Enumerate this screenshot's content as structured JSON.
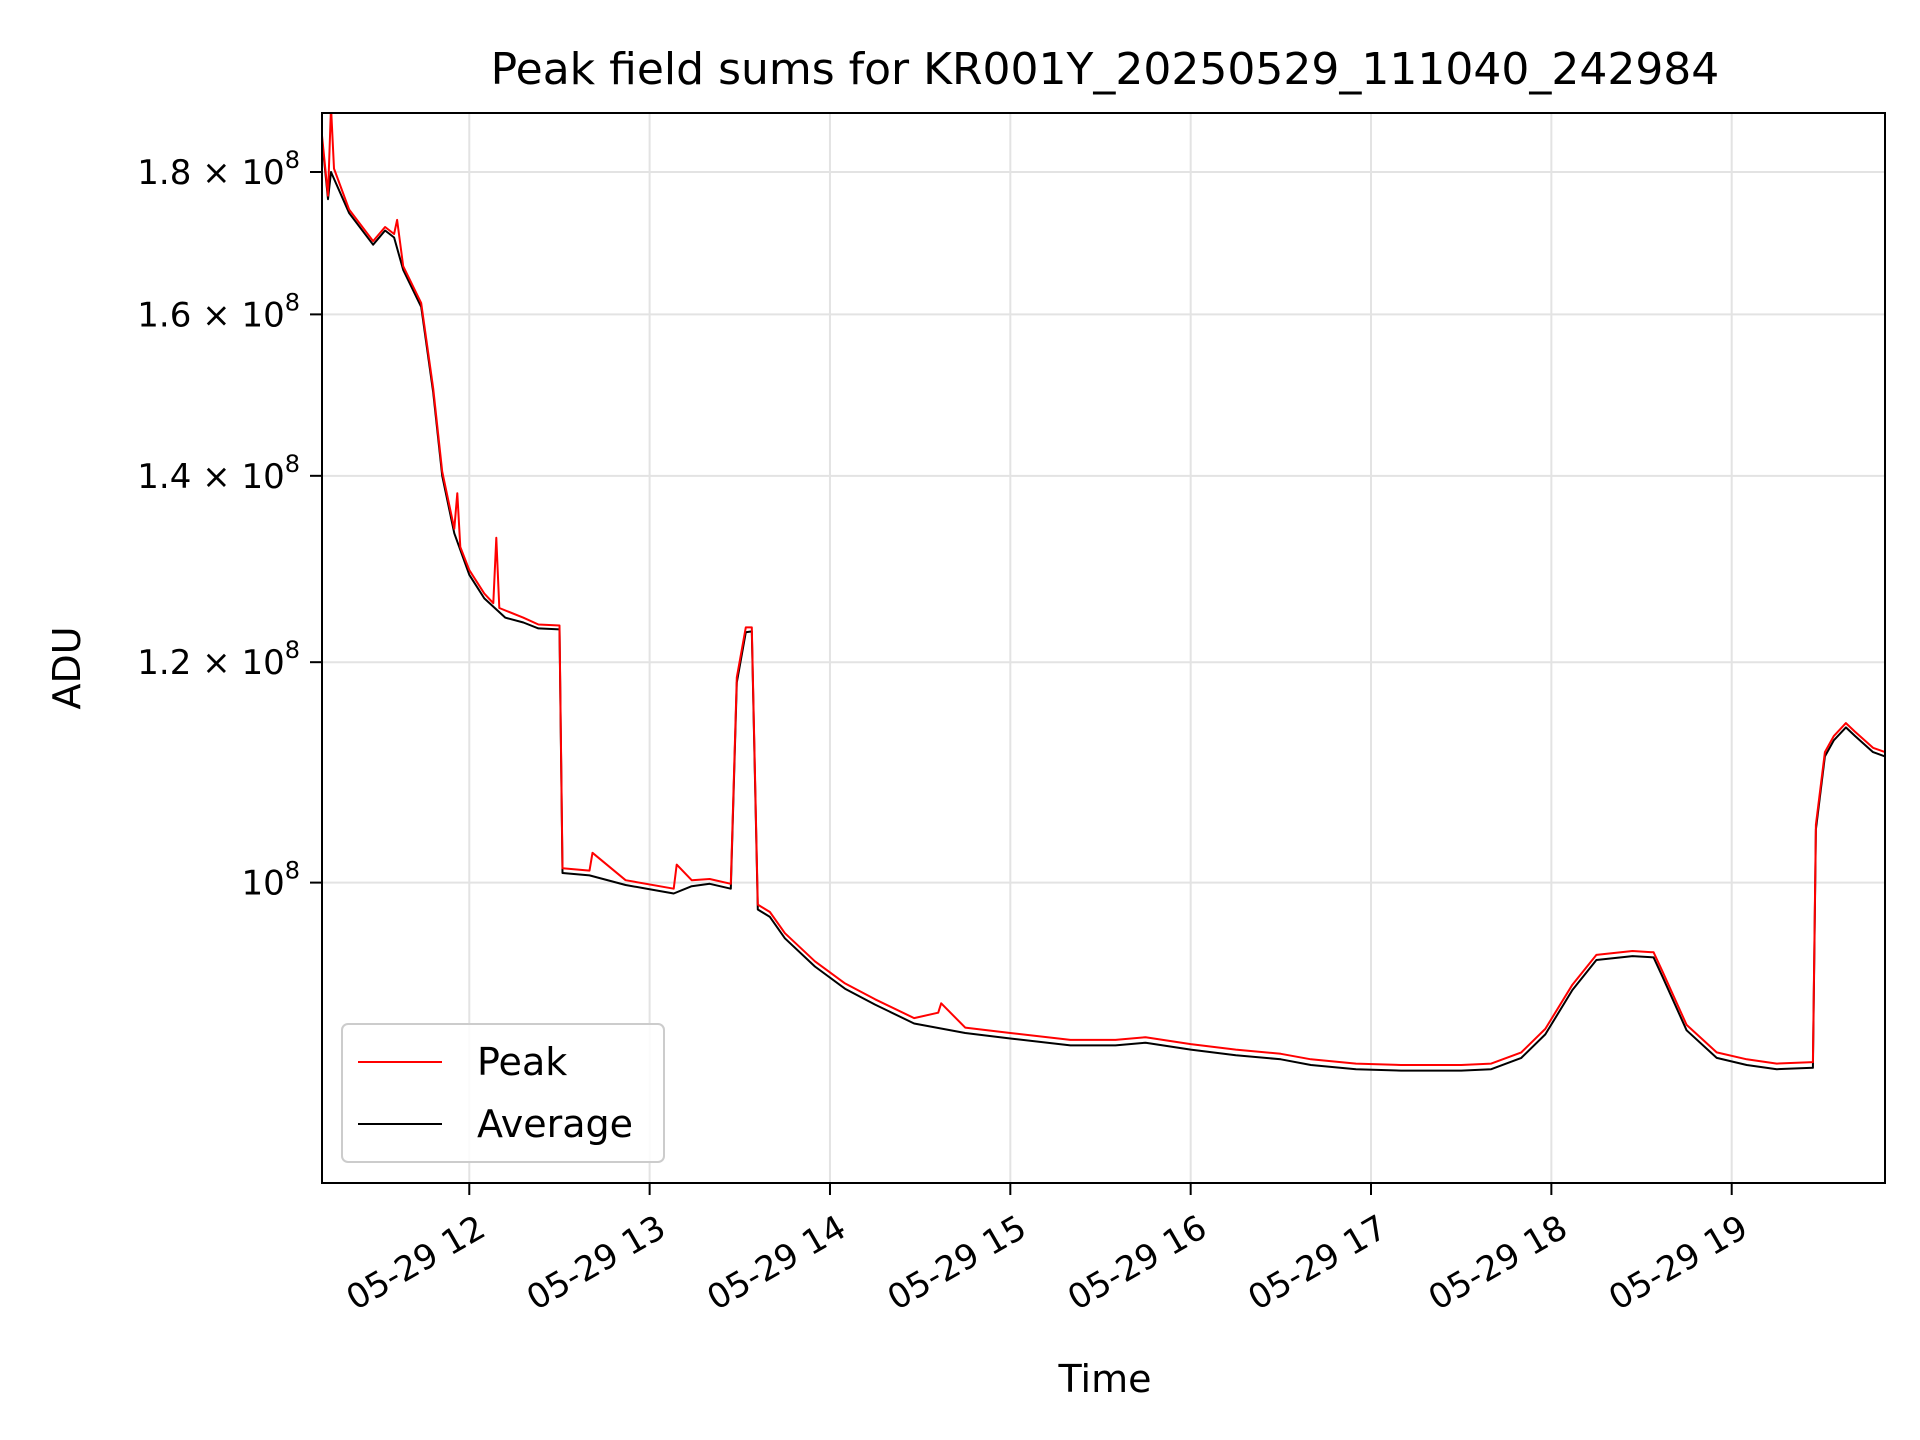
{
  "chart_data": {
    "type": "line",
    "title": "Peak field sums for KR001Y_20250529_111040_242984",
    "xlabel": "Time",
    "ylabel": "ADU",
    "yscale": "log",
    "xlim": [
      "2025-05-29 11:11",
      "2025-05-29 19:51"
    ],
    "ylim": [
      78000000,
      189000000
    ],
    "grid": true,
    "legend_position": "lower-left",
    "x_ticks": [
      {
        "value": "2025-05-29 12:00",
        "label": "05-29 12"
      },
      {
        "value": "2025-05-29 13:00",
        "label": "05-29 13"
      },
      {
        "value": "2025-05-29 14:00",
        "label": "05-29 14"
      },
      {
        "value": "2025-05-29 15:00",
        "label": "05-29 15"
      },
      {
        "value": "2025-05-29 16:00",
        "label": "05-29 16"
      },
      {
        "value": "2025-05-29 17:00",
        "label": "05-29 17"
      },
      {
        "value": "2025-05-29 18:00",
        "label": "05-29 18"
      },
      {
        "value": "2025-05-29 19:00",
        "label": "05-29 19"
      }
    ],
    "y_ticks": [
      {
        "value": 100000000,
        "mant": "",
        "exp": "8"
      },
      {
        "value": 120000000,
        "mant": "1.2",
        "exp": "8"
      },
      {
        "value": 140000000,
        "mant": "1.4",
        "exp": "8"
      },
      {
        "value": 160000000,
        "mant": "1.6",
        "exp": "8"
      },
      {
        "value": 180000000,
        "mant": "1.8",
        "exp": "8"
      }
    ],
    "series": [
      {
        "name": "Average",
        "color": "#000000",
        "points": [
          [
            "2025-05-29 11:11",
            185000000
          ],
          [
            "2025-05-29 11:13",
            176000000
          ],
          [
            "2025-05-29 11:14",
            180000000
          ],
          [
            "2025-05-29 11:20",
            174000000
          ],
          [
            "2025-05-29 11:28",
            169500000
          ],
          [
            "2025-05-29 11:32",
            171500000
          ],
          [
            "2025-05-29 11:35",
            170500000
          ],
          [
            "2025-05-29 11:38",
            166000000
          ],
          [
            "2025-05-29 11:44",
            161000000
          ],
          [
            "2025-05-29 11:48",
            150000000
          ],
          [
            "2025-05-29 11:51",
            140000000
          ],
          [
            "2025-05-29 11:55",
            133500000
          ],
          [
            "2025-05-29 12:00",
            129000000
          ],
          [
            "2025-05-29 12:05",
            126500000
          ],
          [
            "2025-05-29 12:12",
            124500000
          ],
          [
            "2025-05-29 12:18",
            124000000
          ],
          [
            "2025-05-29 12:23",
            123400000
          ],
          [
            "2025-05-29 12:30",
            123300000
          ],
          [
            "2025-05-29 12:31",
            100800000
          ],
          [
            "2025-05-29 12:40",
            100600000
          ],
          [
            "2025-05-29 12:52",
            99800000
          ],
          [
            "2025-05-29 13:08",
            99100000
          ],
          [
            "2025-05-29 13:14",
            99700000
          ],
          [
            "2025-05-29 13:20",
            99900000
          ],
          [
            "2025-05-29 13:27",
            99500000
          ],
          [
            "2025-05-29 13:29",
            118000000
          ],
          [
            "2025-05-29 13:32",
            123000000
          ],
          [
            "2025-05-29 13:34",
            123100000
          ],
          [
            "2025-05-29 13:36",
            97800000
          ],
          [
            "2025-05-29 13:40",
            97200000
          ],
          [
            "2025-05-29 13:45",
            95500000
          ],
          [
            "2025-05-29 13:55",
            93300000
          ],
          [
            "2025-05-29 14:05",
            91600000
          ],
          [
            "2025-05-29 14:15",
            90400000
          ],
          [
            "2025-05-29 14:28",
            89000000
          ],
          [
            "2025-05-29 14:45",
            88300000
          ],
          [
            "2025-05-29 15:00",
            87900000
          ],
          [
            "2025-05-29 15:20",
            87400000
          ],
          [
            "2025-05-29 15:35",
            87400000
          ],
          [
            "2025-05-29 15:45",
            87600000
          ],
          [
            "2025-05-29 16:00",
            87100000
          ],
          [
            "2025-05-29 16:15",
            86700000
          ],
          [
            "2025-05-29 16:30",
            86400000
          ],
          [
            "2025-05-29 16:40",
            86000000
          ],
          [
            "2025-05-29 16:55",
            85700000
          ],
          [
            "2025-05-29 17:10",
            85600000
          ],
          [
            "2025-05-29 17:30",
            85600000
          ],
          [
            "2025-05-29 17:40",
            85700000
          ],
          [
            "2025-05-29 17:50",
            86500000
          ],
          [
            "2025-05-29 17:58",
            88200000
          ],
          [
            "2025-05-29 18:07",
            91500000
          ],
          [
            "2025-05-29 18:15",
            93800000
          ],
          [
            "2025-05-29 18:27",
            94100000
          ],
          [
            "2025-05-29 18:34",
            94000000
          ],
          [
            "2025-05-29 18:37",
            92500000
          ],
          [
            "2025-05-29 18:45",
            88500000
          ],
          [
            "2025-05-29 18:55",
            86500000
          ],
          [
            "2025-05-29 19:05",
            86000000
          ],
          [
            "2025-05-29 19:15",
            85700000
          ],
          [
            "2025-05-29 19:27",
            85800000
          ],
          [
            "2025-05-29 19:28",
            104500000
          ],
          [
            "2025-05-29 19:31",
            111000000
          ],
          [
            "2025-05-29 19:34",
            112500000
          ],
          [
            "2025-05-29 19:38",
            113700000
          ],
          [
            "2025-05-29 19:41",
            112900000
          ],
          [
            "2025-05-29 19:47",
            111400000
          ],
          [
            "2025-05-29 19:51",
            111000000
          ]
        ]
      },
      {
        "name": "Peak",
        "color": "#ff0000",
        "points": [
          [
            "2025-05-29 11:11",
            185500000
          ],
          [
            "2025-05-29 11:13",
            176500000
          ],
          [
            "2025-05-29 11:14",
            190000000
          ],
          [
            "2025-05-29 11:15",
            180500000
          ],
          [
            "2025-05-29 11:20",
            174500000
          ],
          [
            "2025-05-29 11:28",
            170000000
          ],
          [
            "2025-05-29 11:32",
            172000000
          ],
          [
            "2025-05-29 11:35",
            171000000
          ],
          [
            "2025-05-29 11:36",
            173000000
          ],
          [
            "2025-05-29 11:38",
            166500000
          ],
          [
            "2025-05-29 11:44",
            161500000
          ],
          [
            "2025-05-29 11:48",
            150500000
          ],
          [
            "2025-05-29 11:51",
            140500000
          ],
          [
            "2025-05-29 11:55",
            134000000
          ],
          [
            "2025-05-29 11:56",
            138000000
          ],
          [
            "2025-05-29 11:57",
            132000000
          ],
          [
            "2025-05-29 12:00",
            129500000
          ],
          [
            "2025-05-29 12:05",
            127000000
          ],
          [
            "2025-05-29 12:08",
            126000000
          ],
          [
            "2025-05-29 12:09",
            133000000
          ],
          [
            "2025-05-29 12:10",
            125500000
          ],
          [
            "2025-05-29 12:18",
            124500000
          ],
          [
            "2025-05-29 12:23",
            123800000
          ],
          [
            "2025-05-29 12:30",
            123700000
          ],
          [
            "2025-05-29 12:31",
            101200000
          ],
          [
            "2025-05-29 12:40",
            101000000
          ],
          [
            "2025-05-29 12:41",
            102500000
          ],
          [
            "2025-05-29 12:52",
            100200000
          ],
          [
            "2025-05-29 13:08",
            99500000
          ],
          [
            "2025-05-29 13:09",
            101500000
          ],
          [
            "2025-05-29 13:14",
            100200000
          ],
          [
            "2025-05-29 13:20",
            100300000
          ],
          [
            "2025-05-29 13:27",
            99900000
          ],
          [
            "2025-05-29 13:29",
            118500000
          ],
          [
            "2025-05-29 13:32",
            123500000
          ],
          [
            "2025-05-29 13:34",
            123500000
          ],
          [
            "2025-05-29 13:36",
            98200000
          ],
          [
            "2025-05-29 13:40",
            97600000
          ],
          [
            "2025-05-29 13:45",
            95900000
          ],
          [
            "2025-05-29 13:55",
            93700000
          ],
          [
            "2025-05-29 14:05",
            92000000
          ],
          [
            "2025-05-29 14:15",
            90800000
          ],
          [
            "2025-05-29 14:28",
            89400000
          ],
          [
            "2025-05-29 14:36",
            89800000
          ],
          [
            "2025-05-29 14:37",
            90500000
          ],
          [
            "2025-05-29 14:45",
            88700000
          ],
          [
            "2025-05-29 15:00",
            88300000
          ],
          [
            "2025-05-29 15:20",
            87800000
          ],
          [
            "2025-05-29 15:35",
            87800000
          ],
          [
            "2025-05-29 15:45",
            88000000
          ],
          [
            "2025-05-29 16:00",
            87500000
          ],
          [
            "2025-05-29 16:15",
            87100000
          ],
          [
            "2025-05-29 16:30",
            86800000
          ],
          [
            "2025-05-29 16:40",
            86400000
          ],
          [
            "2025-05-29 16:55",
            86100000
          ],
          [
            "2025-05-29 17:10",
            86000000
          ],
          [
            "2025-05-29 17:30",
            86000000
          ],
          [
            "2025-05-29 17:40",
            86100000
          ],
          [
            "2025-05-29 17:50",
            86900000
          ],
          [
            "2025-05-29 17:58",
            88600000
          ],
          [
            "2025-05-29 18:07",
            91900000
          ],
          [
            "2025-05-29 18:15",
            94200000
          ],
          [
            "2025-05-29 18:27",
            94500000
          ],
          [
            "2025-05-29 18:34",
            94400000
          ],
          [
            "2025-05-29 18:37",
            92900000
          ],
          [
            "2025-05-29 18:45",
            88900000
          ],
          [
            "2025-05-29 18:55",
            86900000
          ],
          [
            "2025-05-29 19:05",
            86400000
          ],
          [
            "2025-05-29 19:15",
            86100000
          ],
          [
            "2025-05-29 19:27",
            86200000
          ],
          [
            "2025-05-29 19:28",
            104900000
          ],
          [
            "2025-05-29 19:31",
            111400000
          ],
          [
            "2025-05-29 19:34",
            112900000
          ],
          [
            "2025-05-29 19:38",
            114100000
          ],
          [
            "2025-05-29 19:41",
            113300000
          ],
          [
            "2025-05-29 19:47",
            111800000
          ],
          [
            "2025-05-29 19:51",
            111400000
          ]
        ]
      }
    ],
    "legend": [
      {
        "label": "Peak",
        "color": "#ff0000"
      },
      {
        "label": "Average",
        "color": "#000000"
      }
    ]
  }
}
